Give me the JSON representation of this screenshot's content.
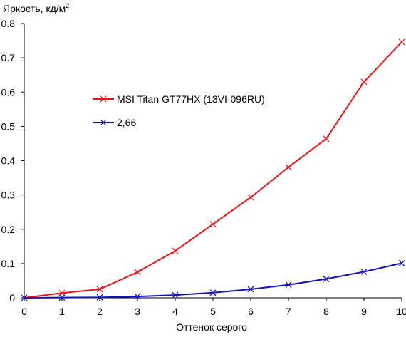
{
  "chart_data": {
    "type": "line",
    "title": "",
    "ylabel": "Яркость, кд/м",
    "ylabel_superscript": "2",
    "xlabel": "Оттенок серого",
    "xlim": [
      0,
      10
    ],
    "ylim": [
      0,
      0.8
    ],
    "grid": false,
    "legend_position": "middle-left inside plot",
    "x": [
      0,
      1,
      2,
      3,
      4,
      5,
      6,
      7,
      8,
      9,
      10
    ],
    "x_tick_labels": [
      "0",
      "1",
      "2",
      "3",
      "4",
      "5",
      "6",
      "7",
      "8",
      "9",
      "10"
    ],
    "y_ticks": [
      0,
      0.1,
      0.2,
      0.3,
      0.4,
      0.5,
      0.6,
      0.7,
      0.8
    ],
    "y_tick_labels": [
      "0",
      "0.1",
      "0.2",
      "0.3",
      "0.4",
      "0.5",
      "0.6",
      "0.7",
      "0.8"
    ],
    "series": [
      {
        "name": "MSI Titan GT77HX (13VI-096RU)",
        "color": "#e8141b",
        "marker": "x",
        "values": [
          0.0,
          0.014,
          0.025,
          0.075,
          0.137,
          0.215,
          0.293,
          0.381,
          0.464,
          0.63,
          0.746
        ]
      },
      {
        "name": "2,66",
        "color": "#1111bb",
        "marker": "x",
        "values": [
          0.0,
          0.0007,
          0.0014,
          0.004,
          0.008,
          0.015,
          0.025,
          0.038,
          0.055,
          0.076,
          0.101
        ]
      }
    ]
  }
}
